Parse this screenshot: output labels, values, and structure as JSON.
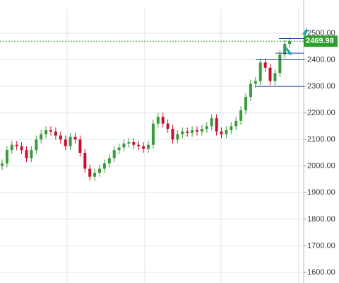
{
  "chart_data": {
    "type": "candlestick",
    "open": [
      2000,
      2010,
      2060,
      2080,
      2075,
      2060,
      2030,
      2060,
      2100,
      2120,
      2135,
      2130,
      2115,
      2100,
      2075,
      2110,
      2100,
      2050,
      1990,
      1960,
      1975,
      1990,
      2010,
      2030,
      2060,
      2070,
      2085,
      2090,
      2080,
      2075,
      2065,
      2080,
      2160,
      2185,
      2160,
      2140,
      2100,
      2120,
      2130,
      2125,
      2135,
      2130,
      2140,
      2150,
      2180,
      2130,
      2120,
      2135,
      2150,
      2170,
      2210,
      2260,
      2310,
      2320,
      2390,
      2370,
      2320,
      2350,
      2420,
      2460
    ],
    "high": [
      2025,
      2075,
      2095,
      2095,
      2090,
      2075,
      2075,
      2115,
      2135,
      2150,
      2150,
      2145,
      2130,
      2115,
      2125,
      2125,
      2115,
      2065,
      2005,
      1990,
      2005,
      2025,
      2045,
      2075,
      2085,
      2100,
      2105,
      2105,
      2095,
      2090,
      2095,
      2175,
      2200,
      2200,
      2175,
      2155,
      2135,
      2145,
      2145,
      2150,
      2150,
      2155,
      2165,
      2195,
      2195,
      2145,
      2150,
      2165,
      2185,
      2225,
      2275,
      2325,
      2335,
      2405,
      2405,
      2385,
      2365,
      2435,
      2475,
      2485
    ],
    "low": [
      1985,
      1995,
      2045,
      2060,
      2045,
      2015,
      2015,
      2045,
      2085,
      2105,
      2115,
      2100,
      2085,
      2060,
      2060,
      2085,
      2035,
      1975,
      1945,
      1945,
      1960,
      1975,
      1995,
      2015,
      2045,
      2055,
      2070,
      2065,
      2060,
      2050,
      2050,
      2065,
      2145,
      2145,
      2125,
      2085,
      2085,
      2105,
      2110,
      2110,
      2115,
      2115,
      2125,
      2135,
      2115,
      2105,
      2105,
      2120,
      2135,
      2155,
      2195,
      2245,
      2295,
      2305,
      2355,
      2305,
      2305,
      2335,
      2405,
      2445
    ],
    "close": [
      2010,
      2060,
      2080,
      2075,
      2060,
      2030,
      2060,
      2100,
      2120,
      2135,
      2130,
      2115,
      2100,
      2075,
      2110,
      2100,
      2050,
      1990,
      1960,
      1975,
      1990,
      2010,
      2030,
      2060,
      2070,
      2085,
      2090,
      2080,
      2075,
      2065,
      2080,
      2160,
      2185,
      2160,
      2140,
      2100,
      2120,
      2130,
      2125,
      2135,
      2130,
      2140,
      2150,
      2180,
      2130,
      2120,
      2135,
      2150,
      2170,
      2210,
      2260,
      2310,
      2320,
      2390,
      2370,
      2320,
      2350,
      2420,
      2460,
      2469.98
    ],
    "up_color": "#3a9b3a",
    "down_color": "#c8102e",
    "ylim": [
      1560,
      2625
    ],
    "yticks": [
      {
        "value": 1600,
        "label": "1600.00"
      },
      {
        "value": 1700,
        "label": "1700.00"
      },
      {
        "value": 1800,
        "label": "1800.00"
      },
      {
        "value": 1900,
        "label": "1900.00"
      },
      {
        "value": 2000,
        "label": "2000.00"
      },
      {
        "value": 2100,
        "label": "2100.00"
      },
      {
        "value": 2200,
        "label": "2200.00"
      },
      {
        "value": 2300,
        "label": "2300.00"
      },
      {
        "value": 2400,
        "label": "2400.00"
      },
      {
        "value": 2500,
        "label": "2500.00"
      }
    ],
    "grid": true,
    "last_price": {
      "value": 2469.98,
      "label": "2469.98"
    },
    "last_price_color": "#2e9e2e",
    "levels": [
      2480,
      2425,
      2400,
      2300
    ],
    "level_color": "#1f3fa0"
  }
}
